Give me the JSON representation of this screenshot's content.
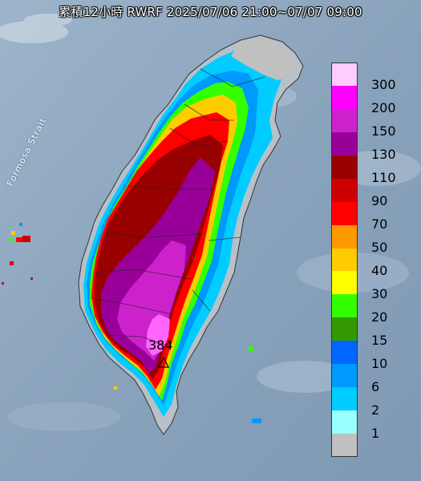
{
  "title": "累積12小時 RWRF 2025/07/06 21:00~07/07 09:00",
  "map_label": "Formosa Strait",
  "max_marker_value": "384",
  "legend": {
    "levels": [
      {
        "label": "300",
        "color": "#ffccff"
      },
      {
        "label": "200",
        "color": "#ff00ff"
      },
      {
        "label": "150",
        "color": "#cc22cc"
      },
      {
        "label": "130",
        "color": "#990099"
      },
      {
        "label": "110",
        "color": "#990000"
      },
      {
        "label": "90",
        "color": "#cc0000"
      },
      {
        "label": "70",
        "color": "#ff0000"
      },
      {
        "label": "50",
        "color": "#ff9900"
      },
      {
        "label": "40",
        "color": "#ffcc00"
      },
      {
        "label": "30",
        "color": "#ffff00"
      },
      {
        "label": "20",
        "color": "#33ff00"
      },
      {
        "label": "15",
        "color": "#339900"
      },
      {
        "label": "10",
        "color": "#0066ff"
      },
      {
        "label": "6",
        "color": "#0099ff"
      },
      {
        "label": "2",
        "color": "#00ccff"
      },
      {
        "label": "1",
        "color": "#99ffff"
      },
      {
        "label": "",
        "color": "#c0c0c0"
      }
    ]
  }
}
